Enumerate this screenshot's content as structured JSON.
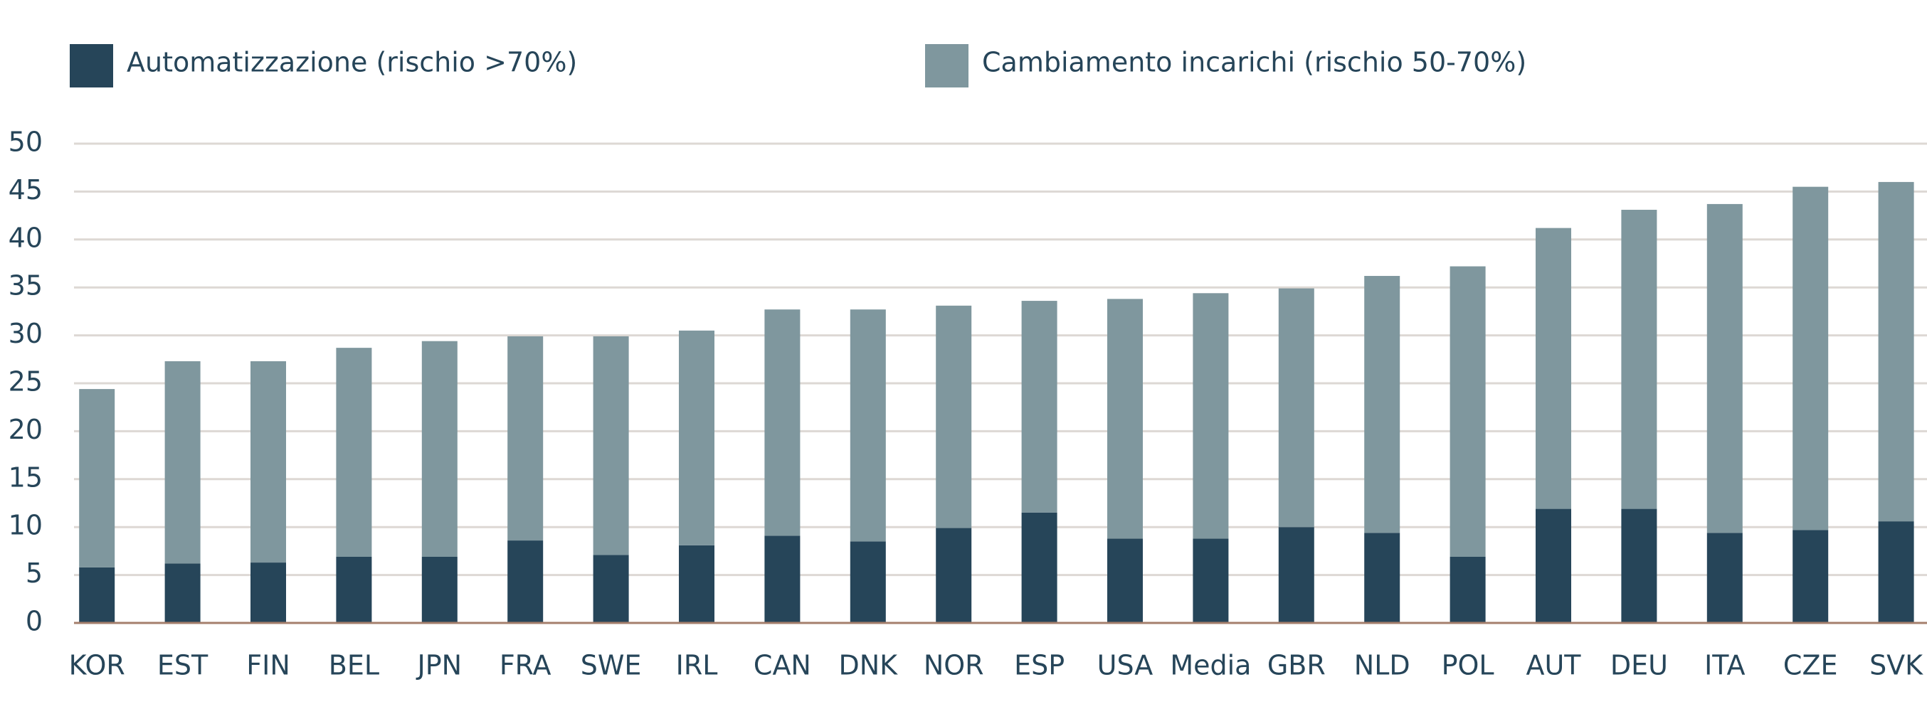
{
  "chart_data": {
    "type": "stacked_bar",
    "categories": [
      "KOR",
      "EST",
      "FIN",
      "BEL",
      "JPN",
      "FRA",
      "SWE",
      "IRL",
      "CAN",
      "DNK",
      "NOR",
      "ESP",
      "USA",
      "Media",
      "GBR",
      "NLD",
      "POL",
      "AUT",
      "DEU",
      "ITA",
      "CZE",
      "SVK"
    ],
    "series": [
      {
        "name": "Automatizzazione (rischio >70%)",
        "color": "#264559",
        "values": [
          5.8,
          6.2,
          6.3,
          6.9,
          6.9,
          8.6,
          7.1,
          8.1,
          9.1,
          8.5,
          9.9,
          11.5,
          8.8,
          8.8,
          10.0,
          9.4,
          6.9,
          11.9,
          11.9,
          9.4,
          9.7,
          10.6
        ]
      },
      {
        "name": "Cambiamento incarichi (rischio 50-70%)",
        "color": "#7f979e",
        "values": [
          18.6,
          21.1,
          21.0,
          21.8,
          22.5,
          21.3,
          22.8,
          22.4,
          23.6,
          24.2,
          23.2,
          22.1,
          25.0,
          25.6,
          24.9,
          26.8,
          30.3,
          29.3,
          31.2,
          34.3,
          35.8,
          35.4
        ]
      }
    ],
    "ylim": [
      0,
      50
    ],
    "yticks": [
      0,
      5,
      10,
      15,
      20,
      25,
      30,
      35,
      40,
      45,
      50
    ],
    "grid": true,
    "legend": "top"
  }
}
